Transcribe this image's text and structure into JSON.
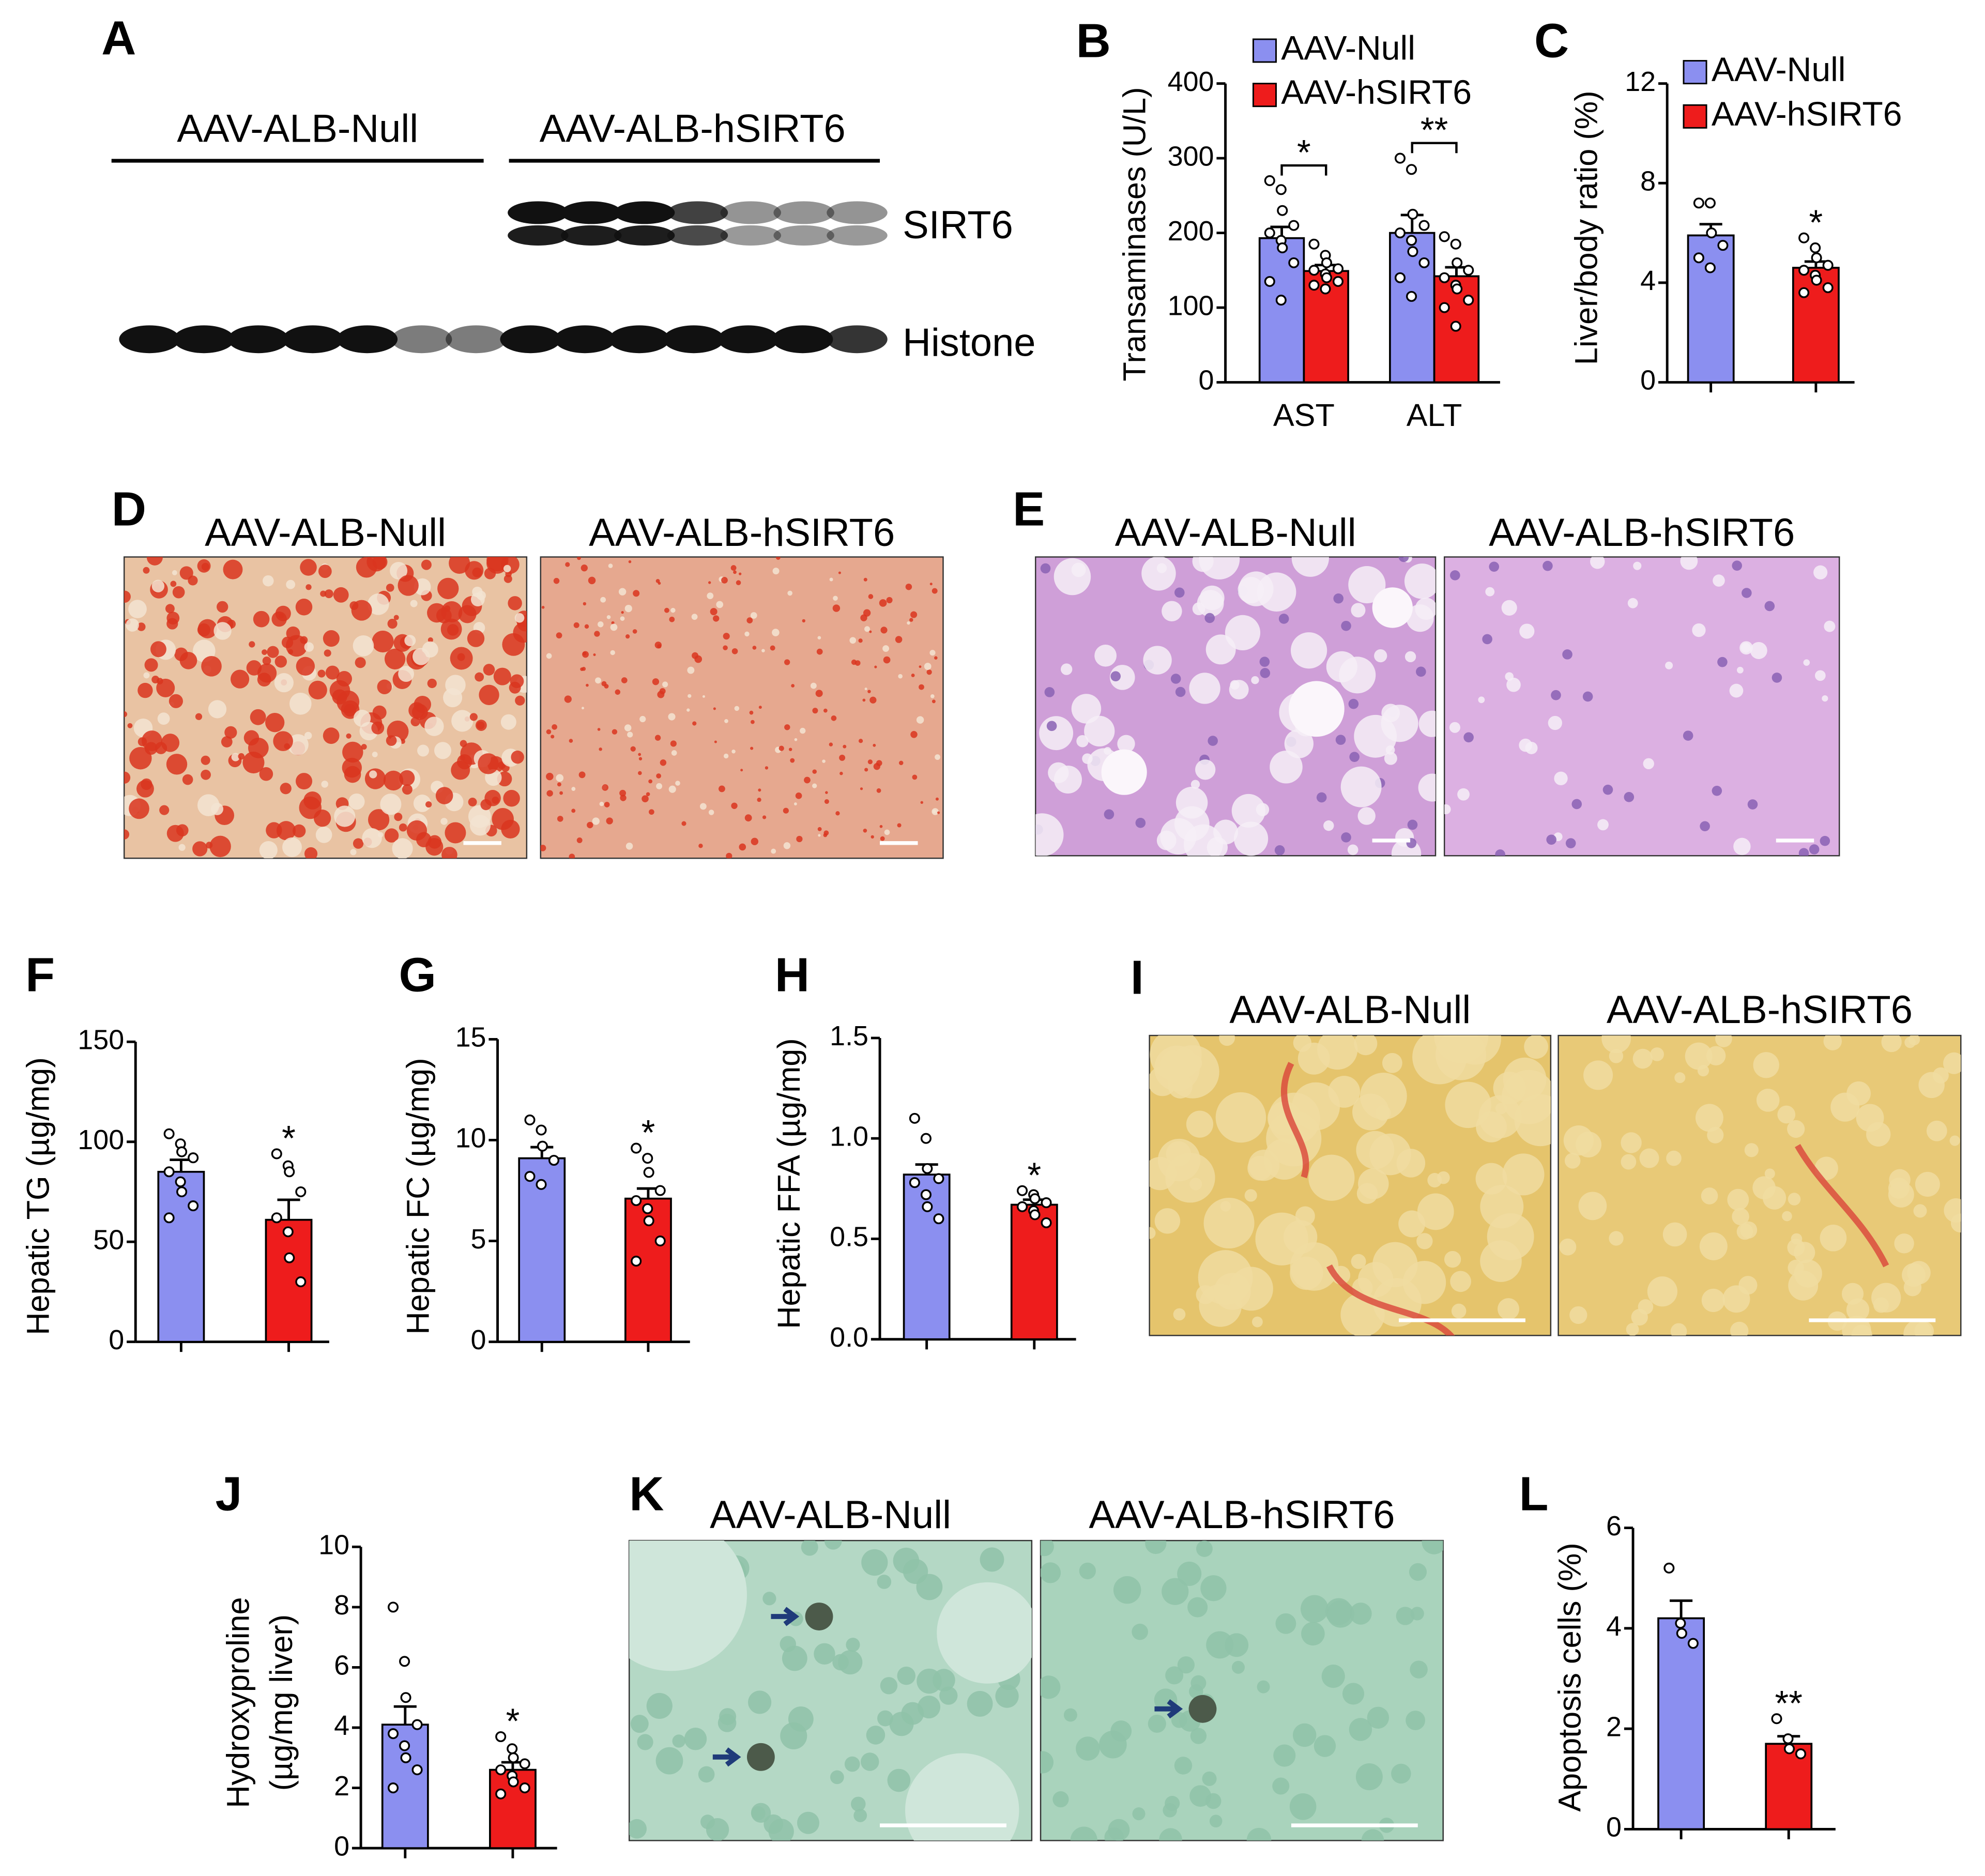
{
  "chart_data": [
    {
      "type": "bar",
      "letter": "B",
      "ylabel": "Transaminases (U/L)",
      "categories": [
        "AST",
        "ALT"
      ],
      "ylim": [
        0,
        400
      ],
      "yticks": [
        0,
        100,
        200,
        300,
        400
      ],
      "series": [
        {
          "name": "AAV-Null",
          "color": "#8b8ff0",
          "values": [
            193,
            200
          ],
          "errors": [
            15,
            24
          ],
          "points": [
            [
              270,
              258,
              230,
              210,
              200,
              190,
              180,
              160,
              135,
              110
            ],
            [
              300,
              285,
              225,
              210,
              200,
              190,
              175,
              160,
              140,
              115
            ]
          ]
        },
        {
          "name": "AAV-hSIRT6",
          "color": "#ee1c1c",
          "values": [
            149,
            142
          ],
          "errors": [
            8,
            12
          ],
          "points": [
            [
              185,
              170,
              160,
              152,
              150,
              145,
              140,
              135,
              130,
              125
            ],
            [
              195,
              185,
              160,
              150,
              140,
              130,
              125,
              110,
              100,
              75
            ]
          ]
        }
      ],
      "annotations": [
        "*",
        "**"
      ]
    },
    {
      "type": "bar",
      "letter": "C",
      "ylabel": "Liver/body ratio (%)",
      "categories": [
        null
      ],
      "ylim": [
        0,
        12
      ],
      "yticks": [
        0,
        4,
        8,
        12
      ],
      "series": [
        {
          "name": "AAV-Null",
          "color": "#8b8ff0",
          "values": [
            5.9
          ],
          "errors": [
            0.45
          ],
          "points": [
            [
              7.2,
              7.2,
              6.0,
              5.5,
              5.0,
              4.6
            ]
          ]
        },
        {
          "name": "AAV-hSIRT6",
          "color": "#ee1c1c",
          "values": [
            4.6
          ],
          "errors": [
            0.25
          ],
          "points": [
            [
              5.8,
              5.4,
              5.0,
              4.7,
              4.5,
              4.3,
              4.1,
              3.8,
              3.6
            ]
          ]
        }
      ],
      "annotations": [
        "*"
      ],
      "annotation_on_last_series": true
    },
    {
      "type": "bar",
      "letter": "F",
      "ylabel": "Hepatic TG (µg/mg)",
      "categories": [
        null,
        null
      ],
      "ylim": [
        0,
        150
      ],
      "yticks": [
        0,
        50,
        100,
        150
      ],
      "colors": [
        "#8b8ff0",
        "#ee1c1c"
      ],
      "values": [
        85,
        61
      ],
      "errors": [
        6,
        10
      ],
      "points": [
        [
          104,
          99,
          95,
          92,
          85,
          80,
          75,
          68,
          62
        ],
        [
          94,
          88,
          85,
          75,
          62,
          55,
          42,
          30
        ]
      ],
      "annotations": [
        null,
        "*"
      ]
    },
    {
      "type": "bar",
      "letter": "G",
      "ylabel": "Hepatic FC (µg/mg)",
      "categories": [
        null,
        null
      ],
      "ylim": [
        0,
        15
      ],
      "yticks": [
        0,
        5,
        10,
        15
      ],
      "colors": [
        "#8b8ff0",
        "#ee1c1c"
      ],
      "values": [
        9.1,
        7.1
      ],
      "errors": [
        0.55,
        0.5
      ],
      "points": [
        [
          11,
          10.5,
          9.7,
          9.0,
          8.2,
          7.8
        ],
        [
          9.6,
          9.1,
          8.4,
          7.5,
          7.0,
          6.6,
          6.0,
          5.0,
          4.0
        ]
      ],
      "annotations": [
        null,
        "*"
      ]
    },
    {
      "type": "bar",
      "letter": "H",
      "ylabel": "Hepatic FFA (µg/mg)",
      "categories": [
        null,
        null
      ],
      "ylim": [
        0,
        1.5
      ],
      "yticks": [
        {
          "value": 0,
          "label": "0.0"
        },
        0.5,
        {
          "value": 1,
          "label": "1.0"
        },
        1.5
      ],
      "colors": [
        "#8b8ff0",
        "#ee1c1c"
      ],
      "values": [
        0.82,
        0.67
      ],
      "errors": [
        0.05,
        0.025
      ],
      "points": [
        [
          1.1,
          1.0,
          0.85,
          0.8,
          0.78,
          0.72,
          0.66,
          0.6
        ],
        [
          0.74,
          0.72,
          0.7,
          0.68,
          0.66,
          0.64,
          0.62,
          0.58
        ]
      ],
      "annotations": [
        null,
        "*"
      ]
    },
    {
      "type": "bar",
      "letter": "J",
      "ylabel": [
        "Hydroxyproline",
        "(µg/mg liver)"
      ],
      "categories": [
        null,
        null
      ],
      "ylim": [
        0,
        10
      ],
      "yticks": [
        0,
        2,
        4,
        6,
        8,
        10
      ],
      "colors": [
        "#8b8ff0",
        "#ee1c1c"
      ],
      "values": [
        4.1,
        2.6
      ],
      "errors": [
        0.6,
        0.25
      ],
      "points": [
        [
          8.0,
          6.2,
          5.0,
          4.1,
          3.8,
          3.4,
          3.0,
          2.6,
          2.0
        ],
        [
          3.7,
          3.3,
          3.0,
          2.8,
          2.6,
          2.4,
          2.2,
          2.0,
          1.8
        ]
      ],
      "annotations": [
        null,
        "*"
      ]
    },
    {
      "type": "bar",
      "letter": "L",
      "ylabel": "Apoptosis cells (%)",
      "categories": [
        null,
        null
      ],
      "ylim": [
        0,
        6
      ],
      "yticks": [
        0,
        2,
        4,
        6
      ],
      "colors": [
        "#8b8ff0",
        "#ee1c1c"
      ],
      "values": [
        4.2,
        1.7
      ],
      "errors": [
        0.35,
        0.15
      ],
      "points": [
        [
          5.2,
          4.1,
          3.9,
          3.7
        ],
        [
          2.2,
          1.8,
          1.6,
          1.5
        ]
      ],
      "annotations": [
        null,
        "**"
      ]
    }
  ],
  "image_panels": [
    {
      "letter": "A",
      "headers": [
        "AAV-ALB-Null",
        "AAV-ALB-hSIRT6"
      ],
      "band_labels": [
        "SIRT6",
        "Histone"
      ]
    },
    {
      "letter": "D",
      "headers": [
        "AAV-ALB-Null",
        "AAV-ALB-hSIRT6"
      ]
    },
    {
      "letter": "E",
      "headers": [
        "AAV-ALB-Null",
        "AAV-ALB-hSIRT6"
      ]
    },
    {
      "letter": "I",
      "headers": [
        "AAV-ALB-Null",
        "AAV-ALB-hSIRT6"
      ]
    },
    {
      "letter": "K",
      "headers": [
        "AAV-ALB-Null",
        "AAV-ALB-hSIRT6"
      ]
    }
  ]
}
